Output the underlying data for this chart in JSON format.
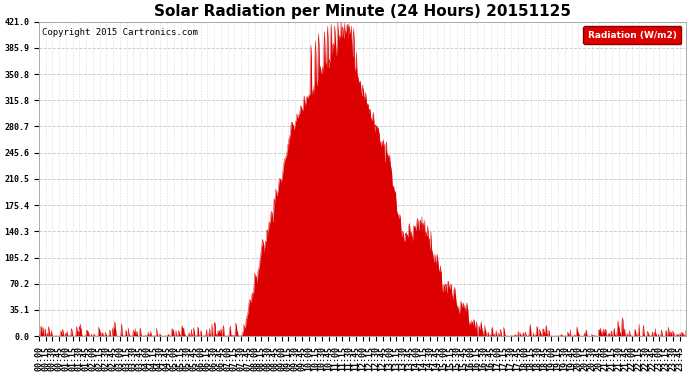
{
  "title": "Solar Radiation per Minute (24 Hours) 20151125",
  "copyright": "Copyright 2015 Cartronics.com",
  "legend_label": "Radiation (W/m2)",
  "legend_bg": "#dd0000",
  "legend_text_color": "#ffffff",
  "fill_color": "#dd0000",
  "line_color": "#dd0000",
  "bg_color": "#ffffff",
  "y_min": 0.0,
  "y_max": 421.0,
  "yticks": [
    0.0,
    35.1,
    70.2,
    105.2,
    140.3,
    175.4,
    210.5,
    245.6,
    280.7,
    315.8,
    350.8,
    385.9,
    421.0
  ],
  "title_fontsize": 11,
  "axis_fontsize": 6,
  "copyright_fontsize": 6.5
}
